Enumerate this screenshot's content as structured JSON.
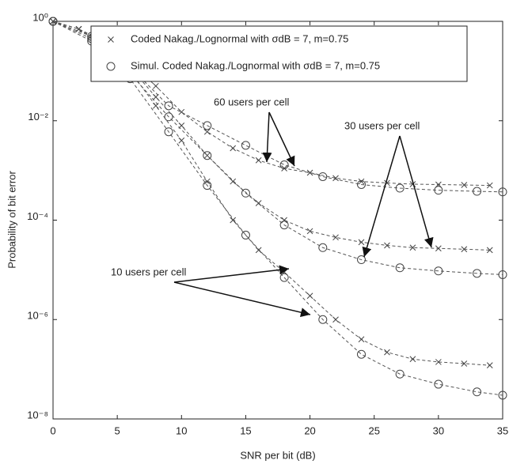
{
  "chart_data": {
    "type": "line",
    "xlabel": "SNR per bit (dB)",
    "ylabel": "Probability of bit error",
    "xlim": [
      0,
      35
    ],
    "xticks": [
      0,
      5,
      10,
      15,
      20,
      25,
      30,
      35
    ],
    "ylim": [
      1e-08,
      1
    ],
    "log_y": true,
    "yticks": [
      {
        "value": 1,
        "label": "10⁰"
      },
      {
        "value": 0.01,
        "label": "10⁻²"
      },
      {
        "value": 0.0001,
        "label": "10⁻⁴"
      },
      {
        "value": 1e-06,
        "label": "10⁻⁶"
      },
      {
        "value": 1e-08,
        "label": "10⁻⁸"
      }
    ],
    "grid": false,
    "legend": [
      {
        "label": "Coded Nakag./Lognormal with σdB = 7, m=0.75",
        "marker": "x"
      },
      {
        "label": "Simul. Coded Nakag./Lognormal with σdB = 7, m=0.75",
        "marker": "o"
      }
    ],
    "legend_position": "top",
    "annotations": [
      "60 users per cell",
      "30 users per cell",
      "10 users per cell"
    ],
    "series": [
      {
        "marker": "x",
        "color": "#555555",
        "x": [
          0,
          2,
          4,
          6,
          8,
          10,
          12,
          14,
          16,
          18,
          20,
          22,
          24,
          26,
          28,
          30,
          32,
          34
        ],
        "values": [
          1,
          0.7,
          0.4,
          0.15,
          0.05,
          0.015,
          0.006,
          0.0028,
          0.0016,
          0.0011,
          0.0009,
          0.0007,
          0.0006,
          0.00056,
          0.00053,
          0.00052,
          0.00051,
          0.0005
        ]
      },
      {
        "marker": "o",
        "color": "#555555",
        "x": [
          0,
          3,
          6,
          9,
          12,
          15,
          18,
          21,
          24,
          27,
          30,
          33,
          35
        ],
        "values": [
          1,
          0.5,
          0.12,
          0.02,
          0.008,
          0.0032,
          0.0013,
          0.00075,
          0.00052,
          0.00044,
          0.0004,
          0.00038,
          0.00037
        ]
      },
      {
        "marker": "x",
        "color": "#555555",
        "x": [
          0,
          2,
          4,
          6,
          8,
          10,
          12,
          14,
          16,
          18,
          20,
          22,
          24,
          26,
          28,
          30,
          32,
          34
        ],
        "values": [
          1,
          0.7,
          0.35,
          0.12,
          0.03,
          0.008,
          0.002,
          0.0006,
          0.00022,
          0.0001,
          6e-05,
          4.5e-05,
          3.6e-05,
          3.1e-05,
          2.8e-05,
          2.7e-05,
          2.6e-05,
          2.5e-05
        ]
      },
      {
        "marker": "o",
        "color": "#555555",
        "x": [
          0,
          3,
          6,
          9,
          12,
          15,
          18,
          21,
          24,
          27,
          30,
          33,
          35
        ],
        "values": [
          1,
          0.45,
          0.09,
          0.012,
          0.002,
          0.00035,
          8e-05,
          2.8e-05,
          1.6e-05,
          1.1e-05,
          9.5e-06,
          8.5e-06,
          8e-06
        ]
      },
      {
        "marker": "x",
        "color": "#555555",
        "x": [
          0,
          2,
          4,
          6,
          8,
          10,
          12,
          14,
          16,
          18,
          20,
          22,
          24,
          26,
          28,
          30,
          32,
          34
        ],
        "values": [
          1,
          0.7,
          0.3,
          0.1,
          0.02,
          0.004,
          0.0006,
          0.0001,
          2.5e-05,
          9e-06,
          3e-06,
          1e-06,
          4e-07,
          2.2e-07,
          1.6e-07,
          1.4e-07,
          1.3e-07,
          1.2e-07
        ]
      },
      {
        "marker": "o",
        "color": "#555555",
        "x": [
          0,
          3,
          6,
          9,
          12,
          15,
          18,
          21,
          24,
          27,
          30,
          33,
          35
        ],
        "values": [
          1,
          0.4,
          0.07,
          0.006,
          0.0005,
          5e-05,
          7e-06,
          1e-06,
          2e-07,
          8e-08,
          5e-08,
          3.5e-08,
          3e-08
        ]
      }
    ]
  }
}
